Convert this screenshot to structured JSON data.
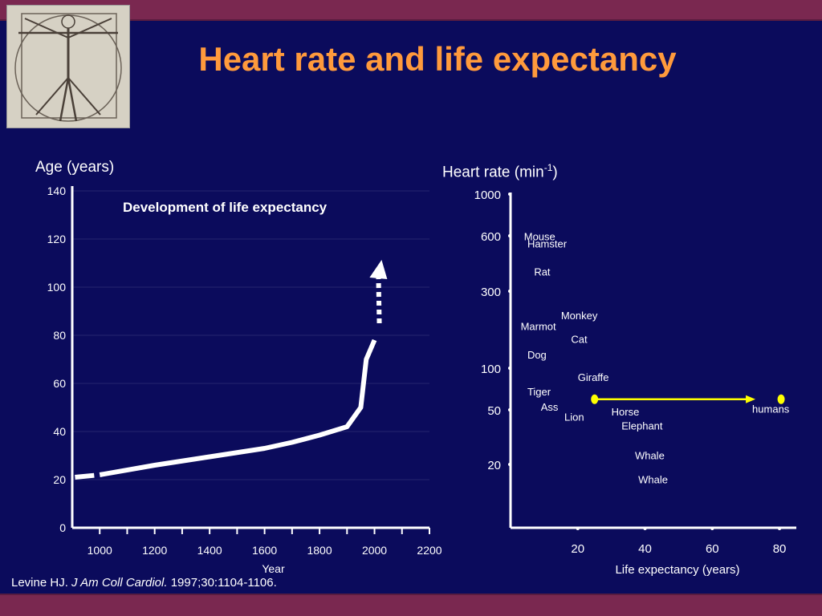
{
  "slide": {
    "title": "Heart rate and life expectancy",
    "citation": {
      "author": "Levine HJ. ",
      "journal": "J Am Coll Cardiol.",
      "ref": " 1997;30:1104-1106."
    }
  },
  "colors": {
    "background": "#0b0b5c",
    "band": "#7a2850",
    "title": "#ff9a3c",
    "text": "#ffffff",
    "highlight": "#ffff00"
  },
  "chart_data": [
    {
      "type": "line",
      "title": "Development of life expectancy",
      "ylabel": "Age (years)",
      "xlabel": "Year",
      "x_ticks": [
        1000,
        1200,
        1400,
        1600,
        1800,
        2000,
        2200
      ],
      "y_ticks": [
        0,
        20,
        40,
        60,
        80,
        100,
        120,
        140
      ],
      "xlim": [
        900,
        2200
      ],
      "ylim": [
        0,
        140
      ],
      "grid": "horizontal",
      "series": [
        {
          "style": "dashed-then-solid",
          "points": [
            [
              910,
              21
            ],
            [
              1000,
              22
            ],
            [
              1200,
              26
            ],
            [
              1400,
              29.5
            ],
            [
              1600,
              33
            ],
            [
              1700,
              35.5
            ],
            [
              1800,
              38.5
            ],
            [
              1900,
              42
            ],
            [
              1950,
              50
            ],
            [
              1970,
              70
            ],
            [
              2000,
              78
            ]
          ]
        },
        {
          "style": "dotted-arrow",
          "points": [
            [
              2000,
              85
            ],
            [
              2020,
              110
            ]
          ]
        }
      ]
    },
    {
      "type": "scatter",
      "ylabel": "Heart rate (min-1)",
      "xlabel": "Life expectancy (years)",
      "x_ticks": [
        20,
        40,
        60,
        80
      ],
      "y_ticks": [
        1000,
        600,
        300,
        100,
        50,
        20
      ],
      "xlim": [
        0,
        85
      ],
      "ylim_scale": "log",
      "y_tick_positions_note": "uneven spacing as printed",
      "points": [
        {
          "name": "Mouse",
          "x": 4,
          "y": 590
        },
        {
          "name": "Hamster",
          "x": 5,
          "y": 540
        },
        {
          "name": "Rat",
          "x": 7,
          "y": 380
        },
        {
          "name": "Monkey",
          "x": 15,
          "y": 210
        },
        {
          "name": "Marmot",
          "x": 3,
          "y": 180
        },
        {
          "name": "Cat",
          "x": 18,
          "y": 150
        },
        {
          "name": "Dog",
          "x": 5,
          "y": 120
        },
        {
          "name": "Giraffe",
          "x": 20,
          "y": 85
        },
        {
          "name": "Tiger",
          "x": 5,
          "y": 67
        },
        {
          "name": "Ass",
          "x": 9,
          "y": 52
        },
        {
          "name": "Horse",
          "x": 30,
          "y": 48
        },
        {
          "name": "Lion",
          "x": 16,
          "y": 44
        },
        {
          "name": "Elephant",
          "x": 33,
          "y": 38
        },
        {
          "name": "Whale",
          "x": 37,
          "y": 23
        },
        {
          "name": "Whale",
          "x": 38,
          "y": 16
        },
        {
          "name": "humans",
          "x": 80,
          "y": 60
        }
      ],
      "highlight_arrow": {
        "from": {
          "x": 25,
          "y": 70
        },
        "to": {
          "x": 80,
          "y": 70
        }
      }
    }
  ]
}
